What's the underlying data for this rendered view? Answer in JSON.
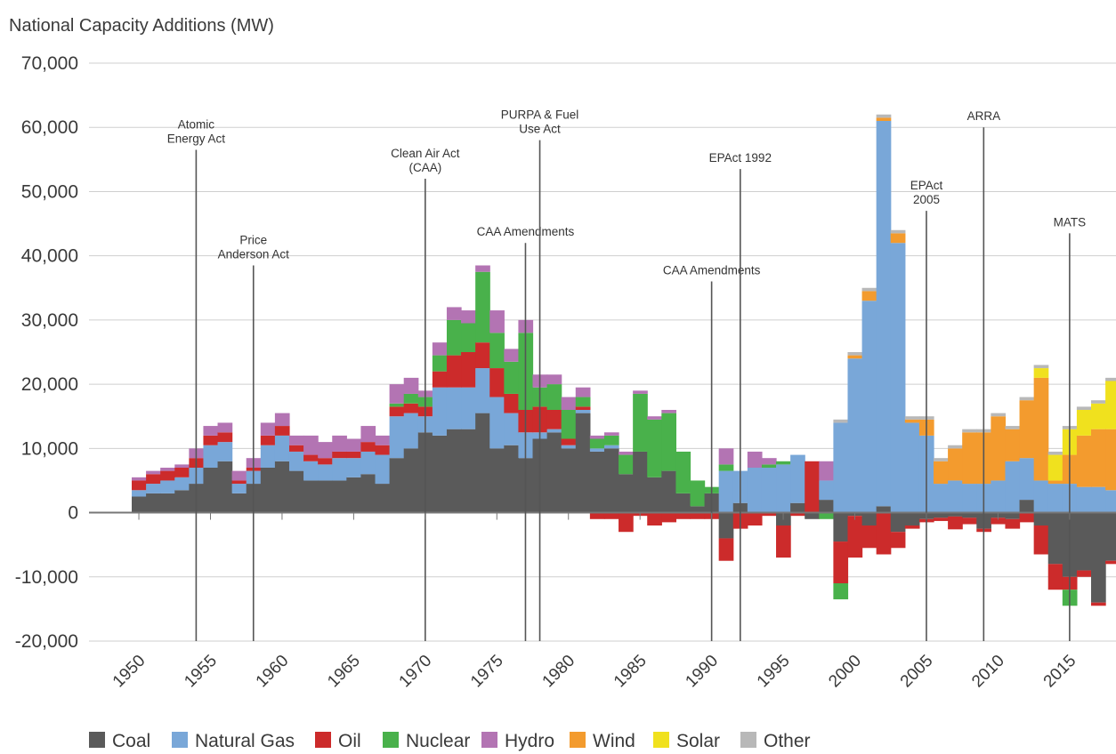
{
  "chart_data": {
    "type": "bar",
    "stacked": true,
    "ylabel": "National Capacity Additions (MW)",
    "ylim": [
      -20000,
      70000
    ],
    "yticks": [
      70000,
      60000,
      50000,
      40000,
      30000,
      20000,
      10000,
      0,
      -10000,
      -20000
    ],
    "ytick_labels": [
      "70,000",
      "60,000",
      "50,000",
      "40,000",
      "30,000",
      "20,000",
      "10,000",
      "0",
      "-10,000",
      "-20,000"
    ],
    "x_range": [
      1950,
      2016
    ],
    "xticks": [
      1950,
      1955,
      1960,
      1965,
      1970,
      1975,
      1980,
      1985,
      1990,
      1995,
      2000,
      2005,
      2010,
      2015
    ],
    "xtick_labels": [
      "1950",
      "1955",
      "1960",
      "1965",
      "1970",
      "1975",
      "1980",
      "1985",
      "1990",
      "1995",
      "2000",
      "2005",
      "2010",
      "2015"
    ],
    "grid": true,
    "legend_position": "bottom-left",
    "series": [
      {
        "name": "Coal",
        "color": "#5a5a5a",
        "values": [
          2500,
          3000,
          3000,
          3500,
          4500,
          7000,
          8000,
          3000,
          4500,
          7000,
          8000,
          6500,
          5000,
          5000,
          5000,
          5500,
          6000,
          4500,
          8500,
          10000,
          12500,
          12000,
          13000,
          13000,
          15500,
          10000,
          10500,
          8500,
          11500,
          12500,
          10000,
          15500,
          9500,
          10000,
          6000,
          9500,
          5500,
          6500,
          3000,
          1000,
          3000,
          -4000,
          1500,
          0,
          0,
          -2000,
          1500,
          -1000,
          2000,
          -4500,
          -500,
          -2000,
          1000,
          -3000,
          -2000,
          -1000,
          -800,
          -600,
          -800,
          -2500,
          -800,
          -1000,
          2000,
          -2000,
          -8000,
          -10000,
          -9000,
          -14000,
          -7500
        ]
      },
      {
        "name": "Natural Gas",
        "color": "#79a7d8",
        "values": [
          1000,
          1500,
          2000,
          2000,
          2500,
          3500,
          3000,
          1500,
          2000,
          3500,
          4000,
          3000,
          3000,
          2500,
          3500,
          3000,
          3500,
          4500,
          6500,
          5500,
          2500,
          7500,
          6500,
          6500,
          7000,
          8000,
          5000,
          4000,
          1000,
          500,
          500,
          500,
          500,
          500,
          0,
          0,
          0,
          0,
          0,
          0,
          0,
          6500,
          5000,
          7000,
          7000,
          7500,
          7500,
          0,
          3000,
          14000,
          24000,
          33000,
          60000,
          42000,
          14000,
          12000,
          4500,
          5000,
          4500,
          4500,
          5000,
          8000,
          6500,
          5000,
          4500,
          4500,
          4000,
          4000,
          3500
        ]
      },
      {
        "name": "Oil",
        "color": "#cc2b2b",
        "values": [
          1500,
          1500,
          1500,
          1500,
          1500,
          1500,
          1500,
          500,
          500,
          1500,
          1500,
          1000,
          1000,
          1000,
          1000,
          1000,
          1500,
          1500,
          1500,
          1500,
          1500,
          2500,
          5000,
          5500,
          4000,
          4500,
          3000,
          3500,
          4000,
          3000,
          1000,
          500,
          -1000,
          -1000,
          -3000,
          -500,
          -2000,
          -1500,
          -1000,
          -1000,
          -1000,
          -3500,
          -2500,
          -2000,
          -500,
          -5000,
          -500,
          8000,
          0,
          -6500,
          -6500,
          -3500,
          -6500,
          -2500,
          -500,
          -500,
          -500,
          -2000,
          -1000,
          -500,
          -1000,
          -1500,
          -1500,
          -4500,
          -4000,
          -2000,
          -1000,
          -500,
          -500
        ]
      },
      {
        "name": "Nuclear",
        "color": "#49b14b",
        "values": [
          0,
          0,
          0,
          0,
          0,
          0,
          0,
          0,
          0,
          0,
          0,
          0,
          0,
          0,
          0,
          0,
          0,
          0,
          500,
          1500,
          1500,
          2500,
          5500,
          4500,
          11000,
          5500,
          5000,
          12000,
          3000,
          4000,
          4500,
          1500,
          1500,
          1500,
          3000,
          9000,
          9000,
          9000,
          6500,
          4000,
          1000,
          1000,
          0,
          0,
          500,
          500,
          0,
          0,
          -1000,
          -2500,
          0,
          0,
          0,
          0,
          0,
          0,
          0,
          0,
          0,
          0,
          0,
          0,
          0,
          0,
          0,
          -2500,
          0,
          0,
          0
        ]
      },
      {
        "name": "Hydro",
        "color": "#b374b3",
        "values": [
          500,
          500,
          500,
          500,
          1500,
          1500,
          1500,
          1500,
          1500,
          2000,
          2000,
          1500,
          3000,
          2500,
          2500,
          2000,
          2500,
          1500,
          3000,
          2500,
          1000,
          2000,
          2000,
          2000,
          1000,
          3500,
          2000,
          2000,
          2000,
          1500,
          2000,
          1500,
          500,
          500,
          500,
          500,
          500,
          500,
          0,
          0,
          0,
          2500,
          0,
          2500,
          1000,
          0,
          0,
          0,
          3000,
          0,
          0,
          0,
          0,
          0,
          0,
          0,
          0,
          0,
          0,
          0,
          0,
          0,
          0,
          0,
          0,
          0,
          0,
          0,
          0
        ]
      },
      {
        "name": "Wind",
        "color": "#f39b2e",
        "values": [
          0,
          0,
          0,
          0,
          0,
          0,
          0,
          0,
          0,
          0,
          0,
          0,
          0,
          0,
          0,
          0,
          0,
          0,
          0,
          0,
          0,
          0,
          0,
          0,
          0,
          0,
          0,
          0,
          0,
          0,
          0,
          0,
          0,
          0,
          0,
          0,
          0,
          0,
          0,
          0,
          0,
          0,
          0,
          0,
          0,
          0,
          0,
          0,
          0,
          0,
          500,
          1500,
          500,
          1500,
          500,
          2500,
          3500,
          5000,
          8000,
          8000,
          10000,
          5000,
          9000,
          16000,
          500,
          4500,
          8000,
          9000,
          9500
        ]
      },
      {
        "name": "Solar",
        "color": "#f0e11e",
        "values": [
          0,
          0,
          0,
          0,
          0,
          0,
          0,
          0,
          0,
          0,
          0,
          0,
          0,
          0,
          0,
          0,
          0,
          0,
          0,
          0,
          0,
          0,
          0,
          0,
          0,
          0,
          0,
          0,
          0,
          0,
          0,
          0,
          0,
          0,
          0,
          0,
          0,
          0,
          0,
          0,
          0,
          0,
          0,
          0,
          0,
          0,
          0,
          0,
          0,
          0,
          0,
          0,
          0,
          0,
          0,
          0,
          0,
          0,
          0,
          0,
          0,
          0,
          0,
          1500,
          4000,
          4000,
          4000,
          4000,
          7500
        ]
      },
      {
        "name": "Other",
        "color": "#b8b8b8",
        "values": [
          0,
          0,
          0,
          0,
          0,
          0,
          0,
          0,
          0,
          0,
          0,
          0,
          0,
          0,
          0,
          0,
          0,
          0,
          0,
          0,
          0,
          0,
          0,
          0,
          0,
          0,
          0,
          0,
          0,
          0,
          0,
          0,
          0,
          0,
          0,
          0,
          0,
          0,
          0,
          0,
          0,
          0,
          0,
          0,
          0,
          0,
          0,
          0,
          0,
          500,
          500,
          500,
          500,
          500,
          500,
          500,
          500,
          500,
          500,
          500,
          500,
          500,
          500,
          500,
          500,
          500,
          500,
          500,
          500
        ]
      }
    ],
    "annotations": [
      {
        "year": 1954,
        "value": 56500,
        "lines": [
          "Atomic",
          "Energy Act"
        ]
      },
      {
        "year": 1958,
        "value": 38500,
        "lines": [
          "Price",
          "Anderson Act"
        ]
      },
      {
        "year": 1970,
        "value": 52000,
        "lines": [
          "Clean Air Act",
          "(CAA)"
        ]
      },
      {
        "year": 1977,
        "value": 42000,
        "lines": [
          "CAA Amendments"
        ]
      },
      {
        "year": 1978,
        "value": 58000,
        "lines": [
          "PURPA & Fuel",
          "Use Act"
        ]
      },
      {
        "year": 1990,
        "value": 36000,
        "lines": [
          "CAA Amendments"
        ]
      },
      {
        "year": 1992,
        "value": 53500,
        "lines": [
          "EPAct 1992"
        ]
      },
      {
        "year": 2005,
        "value": 47000,
        "lines": [
          "EPAct",
          "2005"
        ]
      },
      {
        "year": 2009,
        "value": 60000,
        "lines": [
          "ARRA"
        ]
      },
      {
        "year": 2015,
        "value": 43500,
        "lines": [
          "MATS"
        ]
      }
    ]
  }
}
